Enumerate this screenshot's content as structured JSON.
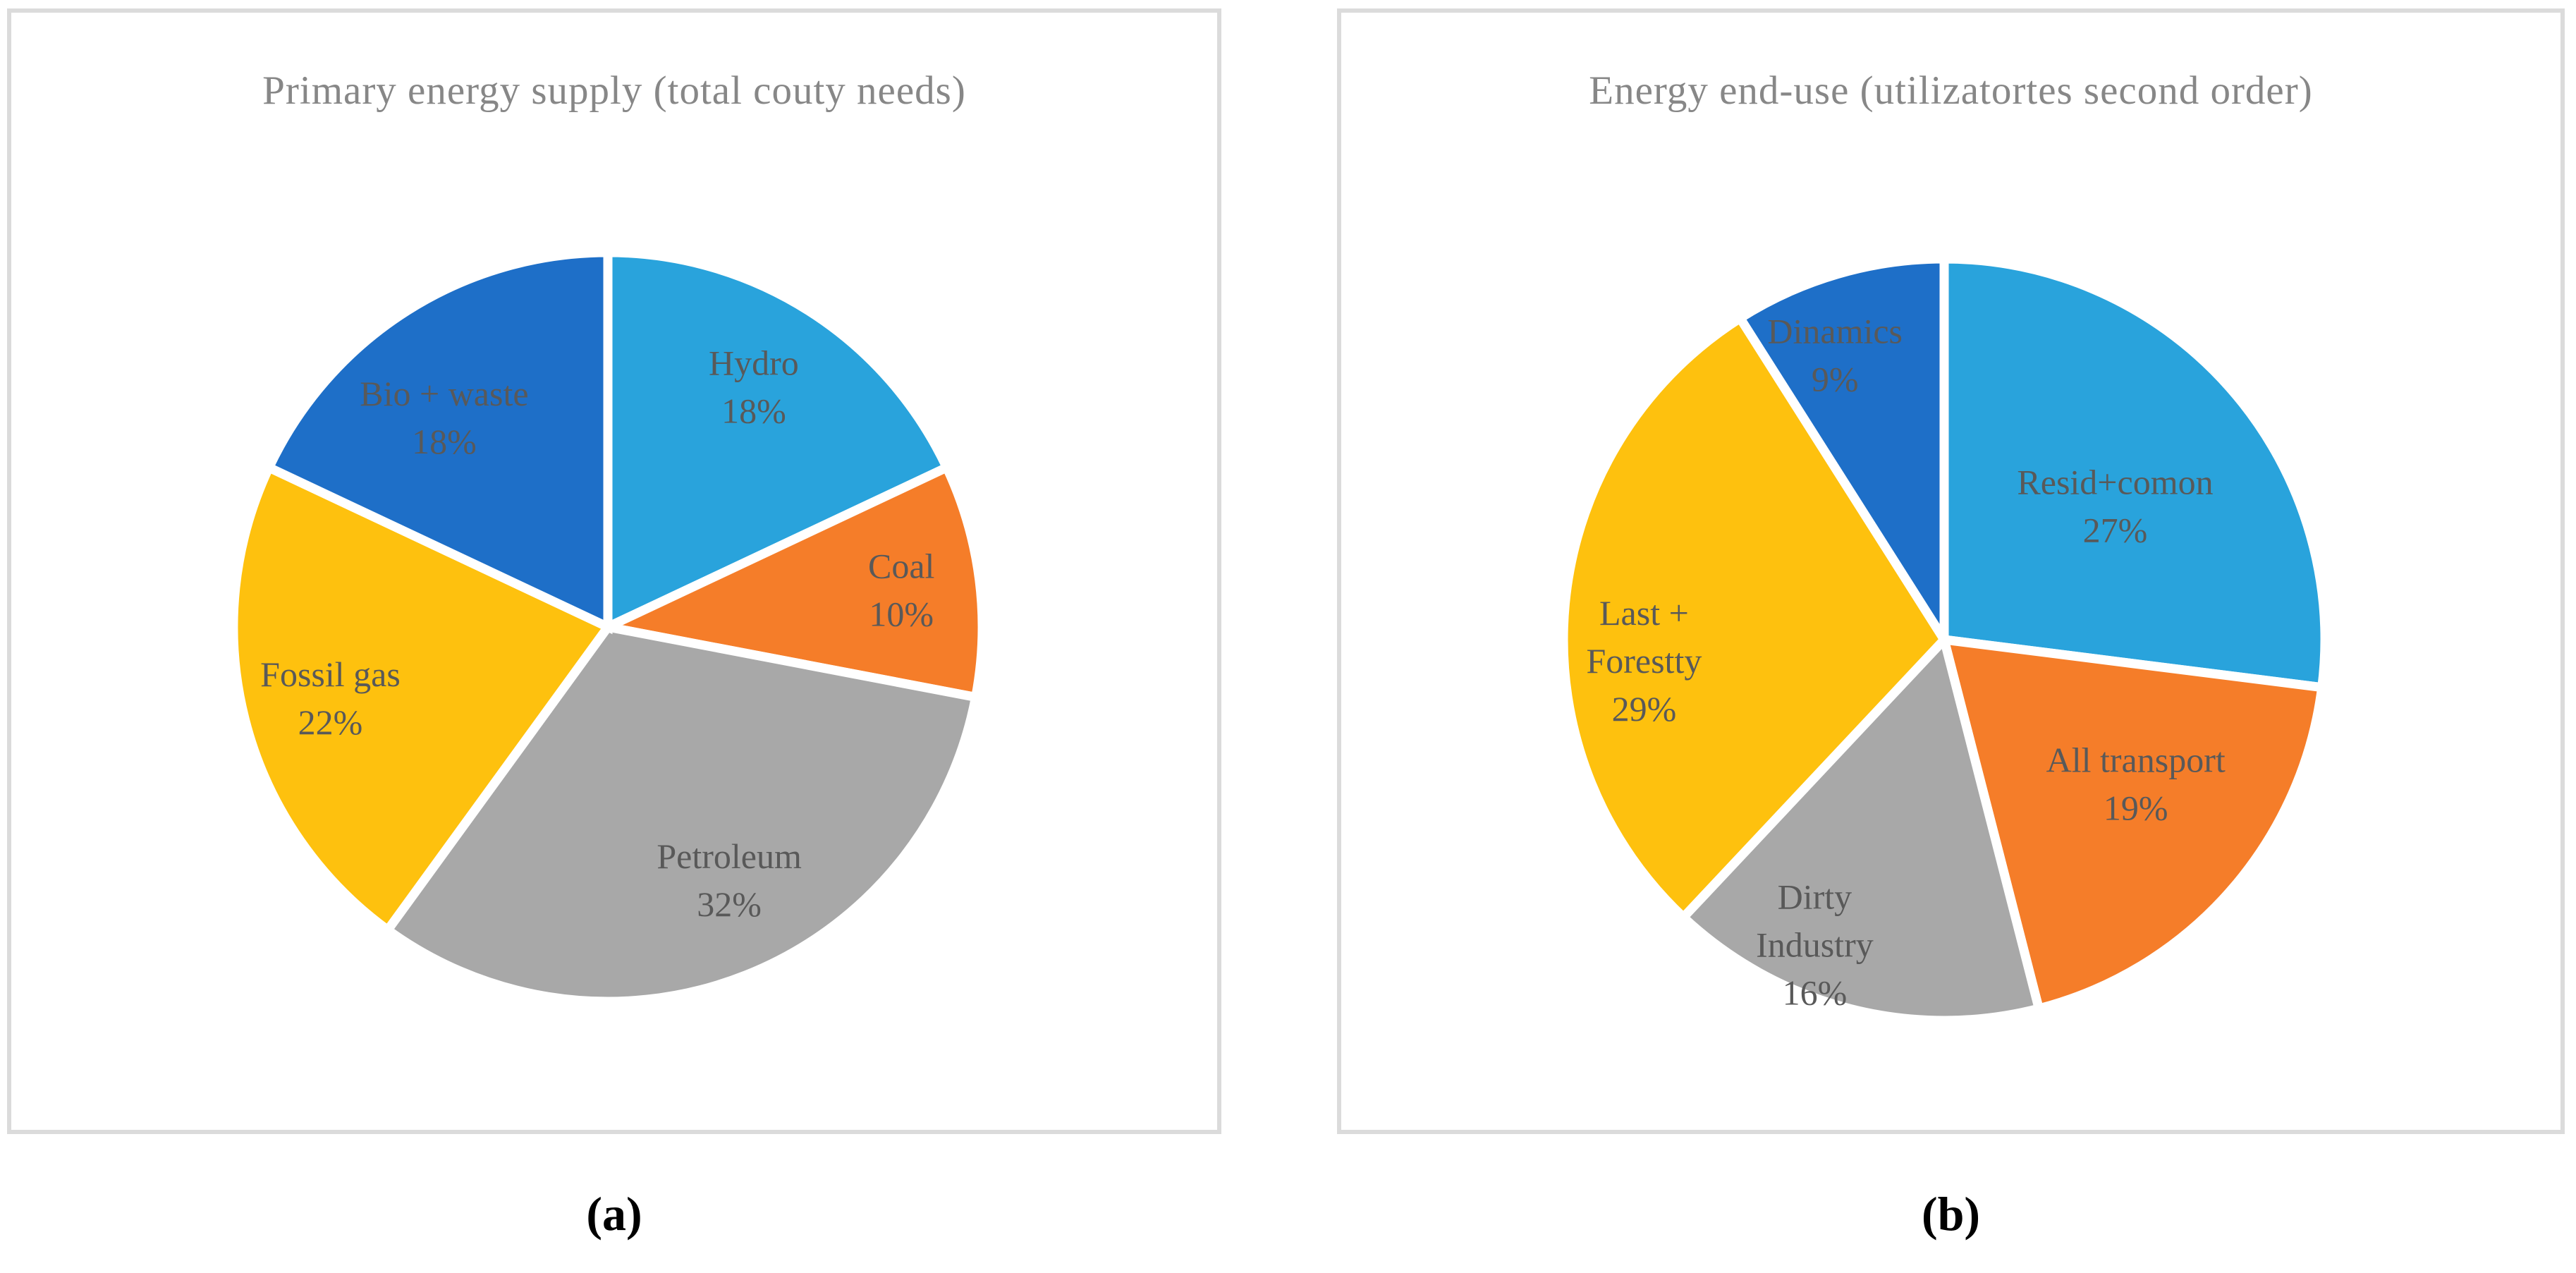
{
  "captions": {
    "a": "(a)",
    "b": "(b)"
  },
  "styles": {
    "background": "#FFFFFF",
    "panel_border": "#DBDBDB",
    "title_color": "#878787",
    "label_color": "#595959",
    "caption_color": "#000000",
    "slice_outline": "#FFFFFF"
  },
  "chart_data": [
    {
      "type": "pie",
      "panel": "a",
      "title": "Primary energy supply (total couty needs)",
      "legend": "none",
      "direction": "clockwise",
      "start_angle_deg": 0,
      "slices": [
        {
          "label": "Hydro",
          "value": 18,
          "pct_label": "18%",
          "color": "#29A3DC",
          "label_lines": [
            "Hydro",
            "18%"
          ],
          "label_angle_deg": 31.3,
          "label_radius_frac": 0.75
        },
        {
          "label": "Coal",
          "value": 10,
          "pct_label": "10%",
          "color": "#F57D29",
          "label_lines": [
            "Coal",
            "10%"
          ],
          "label_angle_deg": 82.8,
          "label_radius_frac": 0.79
        },
        {
          "label": "Petroleum",
          "value": 32,
          "pct_label": "32%",
          "color": "#A8A8A8",
          "label_lines": [
            "Petroleum",
            "32%"
          ],
          "label_angle_deg": 154.4,
          "label_radius_frac": 0.75
        },
        {
          "label": "Fossil gas",
          "value": 22,
          "pct_label": "22%",
          "color": "#FEC10E",
          "label_lines": [
            "Fossil gas",
            "22%"
          ],
          "label_angle_deg": 255.6,
          "label_radius_frac": 0.765
        },
        {
          "label": "Bio + waste",
          "value": 18,
          "pct_label": "18%",
          "color": "#1E6FC8",
          "label_lines": [
            "Bio + waste",
            "18%"
          ],
          "label_angle_deg": 322,
          "label_radius_frac": 0.71
        }
      ]
    },
    {
      "type": "pie",
      "panel": "b",
      "title": "Energy end-use (utilizatortes second order)",
      "legend": "none",
      "direction": "clockwise",
      "start_angle_deg": 0,
      "slices": [
        {
          "label": "Resid+comon",
          "value": 27,
          "pct_label": "27%",
          "color": "#29A3DC",
          "label_lines": [
            "Resid+comon",
            "27%"
          ],
          "label_angle_deg": 52,
          "label_radius_frac": 0.57
        },
        {
          "label": "All transport",
          "value": 19,
          "pct_label": "19%",
          "color": "#F57D29",
          "label_lines": [
            "All transport",
            "19%"
          ],
          "label_angle_deg": 127,
          "label_radius_frac": 0.63
        },
        {
          "label": "Dirty Industry",
          "value": 16,
          "pct_label": "16%",
          "color": "#A8A8A8",
          "label_lines": [
            "Dirty",
            "Industry",
            "16%"
          ],
          "label_angle_deg": 203,
          "label_radius_frac": 0.87
        },
        {
          "label": "Last + Forestty",
          "value": 29,
          "pct_label": "29%",
          "color": "#FEC10E",
          "label_lines": [
            "Last +",
            "Forestty",
            "29%"
          ],
          "label_angle_deg": 266,
          "label_radius_frac": 0.79
        },
        {
          "label": "Dinamics",
          "value": 9,
          "pct_label": "9%",
          "color": "#1E6FC8",
          "label_lines": [
            "Dinamics",
            "9%"
          ],
          "label_angle_deg": 339,
          "label_radius_frac": 0.8
        }
      ]
    }
  ]
}
